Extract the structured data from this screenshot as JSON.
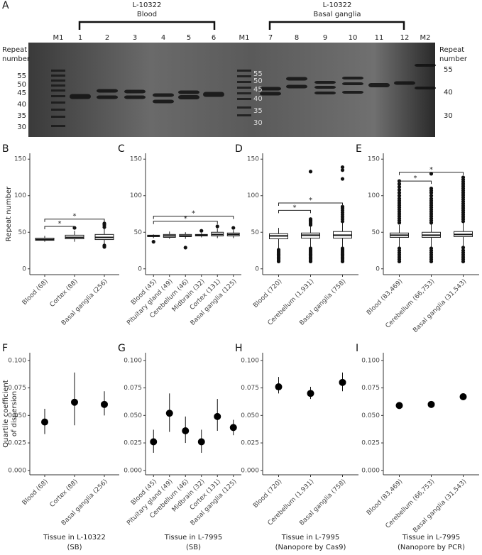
{
  "gel": {
    "panel": "A",
    "groups": [
      {
        "title": "L-10322",
        "subtitle": "Blood"
      },
      {
        "title": "L-10322",
        "subtitle": "Basal ganglia"
      }
    ],
    "lanes": [
      "M1",
      "1",
      "2",
      "3",
      "4",
      "5",
      "6",
      "M1",
      "7",
      "8",
      "9",
      "10",
      "11",
      "12",
      "M2"
    ],
    "left_label": [
      "Repeat",
      "number"
    ],
    "right_label": [
      "Repeat",
      "number"
    ],
    "ladder_left": [
      55,
      50,
      45,
      40,
      35,
      30
    ],
    "ladder_middle": [
      55,
      50,
      45,
      40,
      35,
      30
    ],
    "ladder_right": [
      55,
      40,
      30
    ]
  },
  "chart_data": [
    {
      "type": "box",
      "panel": "B",
      "ylabel": [
        "Repeat number"
      ],
      "categories": [
        "Blood (68)",
        "Cortex (88)",
        "Basal ganglia (256)"
      ],
      "boxes": [
        {
          "whisker_low": 37,
          "q1": 39,
          "median": 40,
          "q3": 42,
          "whisker_high": 45,
          "outliers": []
        },
        {
          "whisker_low": 37,
          "q1": 41,
          "median": 43,
          "q3": 46,
          "whisker_high": 52,
          "outliers": [
            56
          ]
        },
        {
          "whisker_low": 33,
          "q1": 40,
          "median": 43,
          "q3": 47,
          "whisker_high": 55,
          "outliers": [
            30,
            32,
            57,
            60,
            62
          ]
        }
      ],
      "brackets": [
        {
          "span": [
            0,
            1
          ],
          "y": 58,
          "label": "*"
        },
        {
          "span": [
            0,
            2
          ],
          "y": 68,
          "label": "*"
        }
      ],
      "ylim": [
        -8,
        158
      ],
      "yticks": [
        0,
        50,
        100,
        150
      ]
    },
    {
      "type": "box",
      "panel": "C",
      "categories": [
        "Blood (45)",
        "Pituitary gland (49)",
        "Cerebellum (46)",
        "Midbrain (32)",
        "Cortex (131)",
        "Basal ganglia (125)"
      ],
      "boxes": [
        {
          "whisker_low": 42,
          "q1": 44,
          "median": 45,
          "q3": 46,
          "whisker_high": 47,
          "outliers": [
            37
          ]
        },
        {
          "whisker_low": 41,
          "q1": 43,
          "median": 45,
          "q3": 47,
          "whisker_high": 51,
          "outliers": []
        },
        {
          "whisker_low": 41,
          "q1": 44,
          "median": 45,
          "q3": 47,
          "whisker_high": 50,
          "outliers": [
            29
          ]
        },
        {
          "whisker_low": 43,
          "q1": 45,
          "median": 46,
          "q3": 47,
          "whisker_high": 49,
          "outliers": [
            52
          ]
        },
        {
          "whisker_low": 42,
          "q1": 45,
          "median": 47,
          "q3": 50,
          "whisker_high": 55,
          "outliers": [
            58
          ]
        },
        {
          "whisker_low": 42,
          "q1": 45,
          "median": 47,
          "q3": 49,
          "whisker_high": 53,
          "outliers": [
            56
          ]
        }
      ],
      "brackets": [
        {
          "span": [
            0,
            4
          ],
          "y": 65,
          "label": "*"
        },
        {
          "span": [
            0,
            5
          ],
          "y": 72,
          "label": "*"
        }
      ],
      "ylim": [
        -8,
        158
      ],
      "yticks": [
        0,
        50,
        100,
        150
      ]
    },
    {
      "type": "box",
      "panel": "D",
      "categories": [
        "Blood (720)",
        "Cerebellum (1,931)",
        "Basal ganglia (758)"
      ],
      "boxes": [
        {
          "whisker_low": 28,
          "q1": 41,
          "median": 45,
          "q3": 48,
          "whisker_high": 56,
          "outliers": [
            10,
            12,
            14,
            16,
            18,
            20,
            22,
            24,
            26
          ]
        },
        {
          "whisker_low": 29,
          "q1": 42,
          "median": 46,
          "q3": 49,
          "whisker_high": 58,
          "outliers": [
            10,
            12,
            14,
            16,
            18,
            20,
            22,
            24,
            26,
            28,
            60,
            62,
            64,
            66,
            68,
            133
          ]
        },
        {
          "whisker_low": 30,
          "q1": 42,
          "median": 46,
          "q3": 51,
          "whisker_high": 63,
          "outliers": [
            10,
            12,
            14,
            16,
            18,
            20,
            22,
            24,
            26,
            28,
            65,
            68,
            71,
            74,
            77,
            80,
            83,
            85,
            123,
            135,
            139
          ]
        }
      ],
      "brackets": [
        {
          "span": [
            0,
            1
          ],
          "y": 80,
          "label": "*"
        },
        {
          "span": [
            0,
            2
          ],
          "y": 90,
          "label": "*"
        }
      ],
      "ylim": [
        -8,
        158
      ],
      "yticks": [
        0,
        50,
        100,
        150
      ]
    },
    {
      "type": "box",
      "panel": "E",
      "categories": [
        "Blood (83,469)",
        "Cerebellum (66,753)",
        "Basal ganglia (31,543)"
      ],
      "boxes": [
        {
          "whisker_low": 30,
          "q1": 43,
          "median": 46,
          "q3": 49,
          "whisker_high": 60,
          "outliers": [
            10,
            13,
            16,
            19,
            22,
            25,
            28,
            63,
            66,
            69,
            72,
            75,
            78,
            81,
            84,
            87,
            90,
            93,
            96,
            100,
            104,
            108,
            112,
            116,
            120
          ]
        },
        {
          "whisker_low": 30,
          "q1": 43,
          "median": 46,
          "q3": 50,
          "whisker_high": 61,
          "outliers": [
            10,
            13,
            16,
            19,
            22,
            25,
            28,
            63,
            66,
            69,
            72,
            75,
            78,
            81,
            84,
            87,
            90,
            93,
            96,
            100,
            104,
            107,
            110,
            130
          ]
        },
        {
          "whisker_low": 31,
          "q1": 44,
          "median": 47,
          "q3": 51,
          "whisker_high": 63,
          "outliers": [
            10,
            13,
            16,
            19,
            22,
            25,
            29,
            65,
            68,
            71,
            74,
            77,
            80,
            83,
            86,
            89,
            92,
            95,
            98,
            101,
            104,
            107,
            110,
            113,
            116,
            119,
            122,
            125
          ]
        }
      ],
      "brackets": [
        {
          "span": [
            0,
            1
          ],
          "y": 120,
          "label": "*"
        },
        {
          "span": [
            0,
            2
          ],
          "y": 132,
          "label": "*"
        }
      ],
      "ylim": [
        -8,
        158
      ],
      "yticks": [
        0,
        50,
        100,
        150
      ]
    },
    {
      "type": "errorbar",
      "panel": "F",
      "ylabel": [
        "Quartile coefficient",
        "of dispersion"
      ],
      "xlabel": [
        "Tissue in L-10322",
        "(SB)"
      ],
      "categories": [
        "Blood (68)",
        "Cortex (88)",
        "Basal ganglia (256)"
      ],
      "values": [
        0.044,
        0.062,
        0.06
      ],
      "ci_low": [
        0.033,
        0.041,
        0.05
      ],
      "ci_high": [
        0.056,
        0.089,
        0.072
      ],
      "ylim": [
        -0.004,
        0.107
      ],
      "yticks": [
        {
          "value": 0,
          "label": "0.000"
        },
        {
          "value": 0.025,
          "label": "0.025"
        },
        {
          "value": 0.05,
          "label": "0.050"
        },
        {
          "value": 0.075,
          "label": "0.075"
        },
        {
          "value": 0.1,
          "label": "0.100"
        }
      ]
    },
    {
      "type": "errorbar",
      "panel": "G",
      "xlabel": [
        "Tissue in L-7995",
        "(SB)"
      ],
      "categories": [
        "Blood (45)",
        "Pituitary gland (49)",
        "Cerebellum (46)",
        "Midbrain (32)",
        "Cortex (131)",
        "Basal ganglia (125)"
      ],
      "values": [
        0.026,
        0.052,
        0.036,
        0.026,
        0.049,
        0.039
      ],
      "ci_low": [
        0.016,
        0.035,
        0.025,
        0.016,
        0.036,
        0.032
      ],
      "ci_high": [
        0.037,
        0.07,
        0.049,
        0.037,
        0.065,
        0.046
      ],
      "ylim": [
        -0.004,
        0.107
      ],
      "yticks": [
        {
          "value": 0,
          "label": "0.000"
        },
        {
          "value": 0.025,
          "label": "0.025"
        },
        {
          "value": 0.05,
          "label": "0.050"
        },
        {
          "value": 0.075,
          "label": "0.075"
        },
        {
          "value": 0.1,
          "label": "0.100"
        }
      ]
    },
    {
      "type": "errorbar",
      "panel": "H",
      "xlabel": [
        "Tissue in L-7995",
        "(Nanopore by Cas9)"
      ],
      "categories": [
        "Blood (720)",
        "Cerebellum (1,931)",
        "Basal ganglia (758)"
      ],
      "values": [
        0.076,
        0.07,
        0.08
      ],
      "ci_low": [
        0.07,
        0.065,
        0.072
      ],
      "ci_high": [
        0.085,
        0.076,
        0.089
      ],
      "ylim": [
        -0.004,
        0.107
      ],
      "yticks": [
        {
          "value": 0,
          "label": "0.000"
        },
        {
          "value": 0.025,
          "label": "0.025"
        },
        {
          "value": 0.05,
          "label": "0.050"
        },
        {
          "value": 0.075,
          "label": "0.075"
        },
        {
          "value": 0.1,
          "label": "0.100"
        }
      ]
    },
    {
      "type": "errorbar",
      "panel": "I",
      "xlabel": [
        "Tissue in L-7995",
        "(Nanopore by PCR)"
      ],
      "categories": [
        "Blood (83,469)",
        "Cerebellum (66,753)",
        "Basal ganglia (31,543)"
      ],
      "values": [
        0.059,
        0.06,
        0.067
      ],
      "ci_low": [
        0.058,
        0.059,
        0.066
      ],
      "ci_high": [
        0.06,
        0.061,
        0.068
      ],
      "ylim": [
        -0.004,
        0.107
      ],
      "yticks": [
        {
          "value": 0,
          "label": "0.000"
        },
        {
          "value": 0.025,
          "label": "0.025"
        },
        {
          "value": 0.05,
          "label": "0.050"
        },
        {
          "value": 0.075,
          "label": "0.075"
        },
        {
          "value": 0.1,
          "label": "0.100"
        }
      ]
    }
  ]
}
